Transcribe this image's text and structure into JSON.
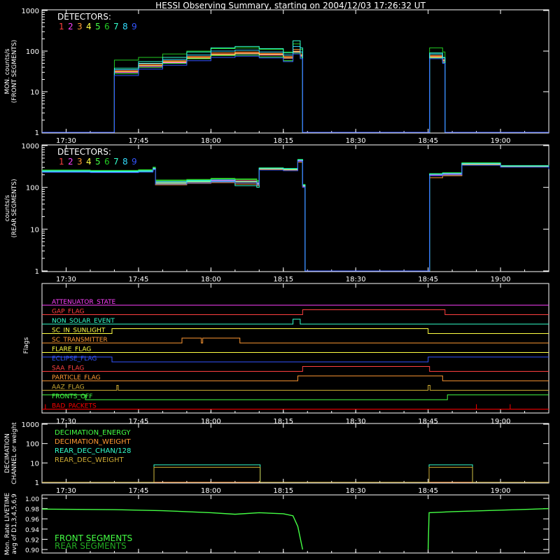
{
  "title": "HESSI Observing Summary, starting on 2004/12/03 17:26:32 UT",
  "time_axis": {
    "start": "17:25",
    "end": "19:10",
    "tick_labels": [
      "17:30",
      "17:45",
      "18:00",
      "18:15",
      "18:30",
      "18:45",
      "19:00"
    ]
  },
  "colors": {
    "det1": "#ff4040",
    "det2": "#ff40ff",
    "det3": "#ff9933",
    "det4": "#ffff44",
    "det5": "#44ff44",
    "det6": "#22cc22",
    "det7": "#33ffcc",
    "det8": "#33ddff",
    "det9": "#3355ff",
    "axis": "#ffffff"
  },
  "chart_data": [
    {
      "type": "line",
      "panel": "front",
      "ylabel": "MON. counts/s\n(FRONT SEGMENTS)",
      "yscale": "log",
      "ylim": [
        1,
        1000
      ],
      "y_tick_labels": [
        "1",
        "10",
        "100",
        "1000"
      ],
      "legend_title": "DETECTORS:",
      "legend_digits": [
        "1",
        "2",
        "3",
        "4",
        "5",
        "6",
        "7",
        "8",
        "9"
      ],
      "x": [
        "17:25",
        "17:39.5",
        "17:40",
        "17:45",
        "17:50",
        "17:55",
        "18:00",
        "18:05",
        "18:10",
        "18:15",
        "18:17",
        "18:18.5",
        "18:19",
        "18:45",
        "18:45.3",
        "18:48",
        "18:48.5",
        "19:10"
      ],
      "series": [
        {
          "name": "1",
          "values": [
            1,
            1,
            32,
            45,
            55,
            70,
            85,
            90,
            85,
            70,
            100,
            80,
            1,
            1,
            75,
            60,
            1,
            1
          ]
        },
        {
          "name": "2",
          "values": [
            1,
            1,
            30,
            42,
            52,
            66,
            80,
            86,
            80,
            67,
            95,
            75,
            1,
            1,
            70,
            55,
            1,
            1
          ]
        },
        {
          "name": "3",
          "values": [
            1,
            1,
            34,
            48,
            58,
            74,
            90,
            95,
            88,
            74,
            110,
            85,
            1,
            1,
            78,
            62,
            1,
            1
          ]
        },
        {
          "name": "4",
          "values": [
            1,
            1,
            31,
            44,
            54,
            68,
            82,
            88,
            82,
            68,
            98,
            78,
            1,
            1,
            72,
            58,
            1,
            1
          ]
        },
        {
          "name": "5",
          "values": [
            1,
            1,
            28,
            40,
            50,
            65,
            78,
            80,
            72,
            58,
            90,
            70,
            1,
            1,
            68,
            52,
            1,
            1
          ]
        },
        {
          "name": "6",
          "values": [
            1,
            1,
            60,
            70,
            85,
            100,
            115,
            120,
            110,
            95,
            150,
            110,
            1,
            1,
            120,
            95,
            1,
            1
          ]
        },
        {
          "name": "7",
          "values": [
            1,
            1,
            38,
            55,
            70,
            95,
            120,
            130,
            115,
            90,
            180,
            120,
            1,
            1,
            90,
            70,
            1,
            1
          ]
        },
        {
          "name": "8",
          "values": [
            1,
            1,
            35,
            50,
            62,
            80,
            100,
            105,
            95,
            80,
            130,
            95,
            1,
            1,
            85,
            68,
            1,
            1
          ]
        },
        {
          "name": "9",
          "values": [
            1,
            1,
            25,
            36,
            45,
            58,
            70,
            75,
            68,
            55,
            85,
            65,
            1,
            1,
            65,
            50,
            1,
            1
          ]
        }
      ]
    },
    {
      "type": "line",
      "panel": "rear",
      "ylabel": "counts/s\n(REAR SEGMENTS)",
      "yscale": "log",
      "ylim": [
        1,
        1000
      ],
      "y_tick_labels": [
        "1",
        "10",
        "100",
        "1000"
      ],
      "legend_title": "DETECTORS:",
      "legend_digits": [
        "1",
        "2",
        "3",
        "4",
        "5",
        "6",
        "7",
        "8",
        "9"
      ],
      "x": [
        "17:25",
        "17:35",
        "17:45",
        "17:48",
        "17:48.5",
        "17:55",
        "18:00",
        "18:05",
        "18:09.5",
        "18:10",
        "18:15",
        "18:18",
        "18:19",
        "18:19.5",
        "18:45",
        "18:45.3",
        "18:48",
        "18:52",
        "19:00",
        "19:10"
      ],
      "series": [
        {
          "name": "1",
          "values": [
            240,
            235,
            245,
            280,
            135,
            140,
            150,
            145,
            130,
            280,
            270,
            440,
            110,
            1,
            1,
            200,
            210,
            360,
            320,
            290
          ]
        },
        {
          "name": "2",
          "values": [
            235,
            230,
            240,
            275,
            130,
            135,
            145,
            140,
            125,
            275,
            265,
            430,
            105,
            1,
            1,
            195,
            205,
            350,
            315,
            285
          ]
        },
        {
          "name": "3",
          "values": [
            250,
            245,
            250,
            290,
            115,
            125,
            130,
            120,
            110,
            270,
            260,
            400,
            100,
            1,
            1,
            170,
            190,
            340,
            310,
            280
          ]
        },
        {
          "name": "4",
          "values": [
            245,
            240,
            248,
            285,
            125,
            135,
            140,
            135,
            120,
            278,
            268,
            420,
            108,
            1,
            1,
            190,
            200,
            355,
            318,
            288
          ]
        },
        {
          "name": "5",
          "values": [
            255,
            250,
            260,
            300,
            145,
            150,
            160,
            155,
            140,
            290,
            280,
            460,
            115,
            1,
            1,
            210,
            220,
            380,
            330,
            300
          ]
        },
        {
          "name": "6",
          "values": [
            260,
            255,
            265,
            305,
            150,
            155,
            165,
            160,
            145,
            295,
            285,
            470,
            118,
            1,
            1,
            215,
            225,
            390,
            335,
            305
          ]
        },
        {
          "name": "7",
          "values": [
            240,
            235,
            240,
            270,
            130,
            140,
            140,
            110,
            100,
            285,
            275,
            450,
            112,
            1,
            1,
            205,
            215,
            370,
            325,
            295
          ]
        },
        {
          "name": "8",
          "values": [
            248,
            243,
            250,
            288,
            138,
            145,
            152,
            140,
            128,
            288,
            278,
            455,
            113,
            1,
            1,
            208,
            218,
            375,
            328,
            298
          ]
        },
        {
          "name": "9",
          "values": [
            230,
            225,
            232,
            265,
            120,
            128,
            135,
            128,
            115,
            260,
            250,
            420,
            100,
            1,
            1,
            190,
            200,
            340,
            305,
            275
          ]
        }
      ]
    },
    {
      "type": "line",
      "panel": "flags",
      "ylabel": "Flags",
      "flags": [
        {
          "name": "ATTENUATOR_STATE",
          "color": "#ff40ff",
          "transitions": [
            [
              "17:25",
              0
            ]
          ]
        },
        {
          "name": "GAP_FLAG",
          "color": "#ff4040",
          "transitions": [
            [
              "17:25",
              0
            ],
            [
              "18:19",
              1
            ],
            [
              "18:48.5",
              0
            ]
          ]
        },
        {
          "name": "NON_SOLAR_EVENT",
          "color": "#33ffcc",
          "transitions": [
            [
              "17:25",
              0
            ],
            [
              "18:17",
              1
            ],
            [
              "18:18.5",
              0
            ]
          ]
        },
        {
          "name": "SC_IN_SUNLIGHT",
          "color": "#ffff44",
          "transitions": [
            [
              "17:25",
              0
            ],
            [
              "17:39.5",
              1
            ],
            [
              "18:45",
              0
            ]
          ]
        },
        {
          "name": "SC_TRANSMITTER",
          "color": "#ff9933",
          "transitions": [
            [
              "17:25",
              0
            ],
            [
              "17:54",
              1
            ],
            [
              "17:58",
              0
            ],
            [
              "17:58.3",
              1
            ],
            [
              "18:06",
              0
            ]
          ]
        },
        {
          "name": "FLARE_FLAG",
          "color": "#ffff44",
          "transitions": [
            [
              "17:25",
              0
            ]
          ]
        },
        {
          "name": "ECLIPSE_FLAG",
          "color": "#3355ff",
          "transitions": [
            [
              "17:25",
              1
            ],
            [
              "17:39.5",
              0
            ],
            [
              "18:45",
              1
            ]
          ]
        },
        {
          "name": "SAA_FLAG",
          "color": "#ff4040",
          "transitions": [
            [
              "17:25",
              0
            ],
            [
              "18:19",
              1
            ],
            [
              "18:45.3",
              0
            ]
          ]
        },
        {
          "name": "PARTICLE_FLAG",
          "color": "#ff9933",
          "transitions": [
            [
              "17:25",
              0
            ],
            [
              "18:18",
              1
            ],
            [
              "18:48",
              0
            ]
          ]
        },
        {
          "name": "AAZ_FLAG",
          "color": "#ccaa33",
          "transitions": [
            [
              "17:25",
              0
            ],
            [
              "17:40.5",
              1
            ],
            [
              "17:40.8",
              0
            ],
            [
              "18:45",
              1
            ],
            [
              "18:45.4",
              0
            ]
          ]
        },
        {
          "name": "FRONTS_OFF",
          "color": "#44ff44",
          "transitions": [
            [
              "17:25",
              1
            ],
            [
              "17:34",
              0
            ],
            [
              "18:49",
              1
            ]
          ]
        },
        {
          "name": "BAD_PACKETS",
          "color": "#ff0000",
          "transitions": [
            [
              "17:25",
              0
            ]
          ],
          "spikes": [
            "17:25.7",
            "18:55",
            "19:02"
          ]
        }
      ]
    },
    {
      "type": "line",
      "panel": "decimation",
      "ylabel": "DECIMATION\nCHANNEL or weight",
      "yscale": "log",
      "ylim": [
        1,
        1000
      ],
      "y_tick_labels": [
        "1",
        "10",
        "100",
        "1000"
      ],
      "x": [
        "17:25",
        "17:48",
        "17:48.2",
        "18:10",
        "18:10.2",
        "18:45",
        "18:45.2",
        "18:54",
        "18:54.2",
        "19:10"
      ],
      "series": [
        {
          "name": "DECIMATION_ENERGY",
          "color": "#44ff44",
          "values": [
            1,
            1,
            1,
            1,
            1,
            1,
            1,
            1,
            1,
            1
          ]
        },
        {
          "name": "DECIMATION_WEIGHT",
          "color": "#ff9933",
          "values": [
            1,
            1,
            1,
            1,
            1,
            1,
            1,
            1,
            1,
            1
          ]
        },
        {
          "name": "REAR_DEC_CHAN/128",
          "color": "#33ffcc",
          "values": [
            1,
            1,
            8,
            8,
            1,
            1,
            8,
            8,
            1,
            1
          ]
        },
        {
          "name": "REAR_DEC_WEIGHT",
          "color": "#ccaa33",
          "values": [
            1,
            1,
            6,
            6,
            1,
            1,
            6,
            6,
            1,
            1
          ]
        }
      ]
    },
    {
      "type": "line",
      "panel": "livetime",
      "ylabel": "Mon. Rate LIVETIME\navg of D1,3,4,5,6,9",
      "ylim": [
        0.9,
        1.0
      ],
      "y_tick_labels": [
        "0.90",
        "0.92",
        "0.94",
        "0.96",
        "0.98",
        "1.00"
      ],
      "legend": [
        "FRONT SEGMENTS",
        "REAR SEGMENTS"
      ],
      "x": [
        "17:25",
        "17:40",
        "17:50",
        "18:00",
        "18:05",
        "18:10",
        "18:15",
        "18:17",
        "18:18",
        "18:19",
        "18:45",
        "18:45.2",
        "18:50",
        "19:00",
        "19:10"
      ],
      "series": [
        {
          "name": "FRONT SEGMENTS",
          "color": "#44ff44",
          "values": [
            0.979,
            0.978,
            0.976,
            0.972,
            0.969,
            0.972,
            0.97,
            0.966,
            0.945,
            0.9,
            0.9,
            0.972,
            0.974,
            0.977,
            0.98
          ]
        }
      ]
    }
  ]
}
